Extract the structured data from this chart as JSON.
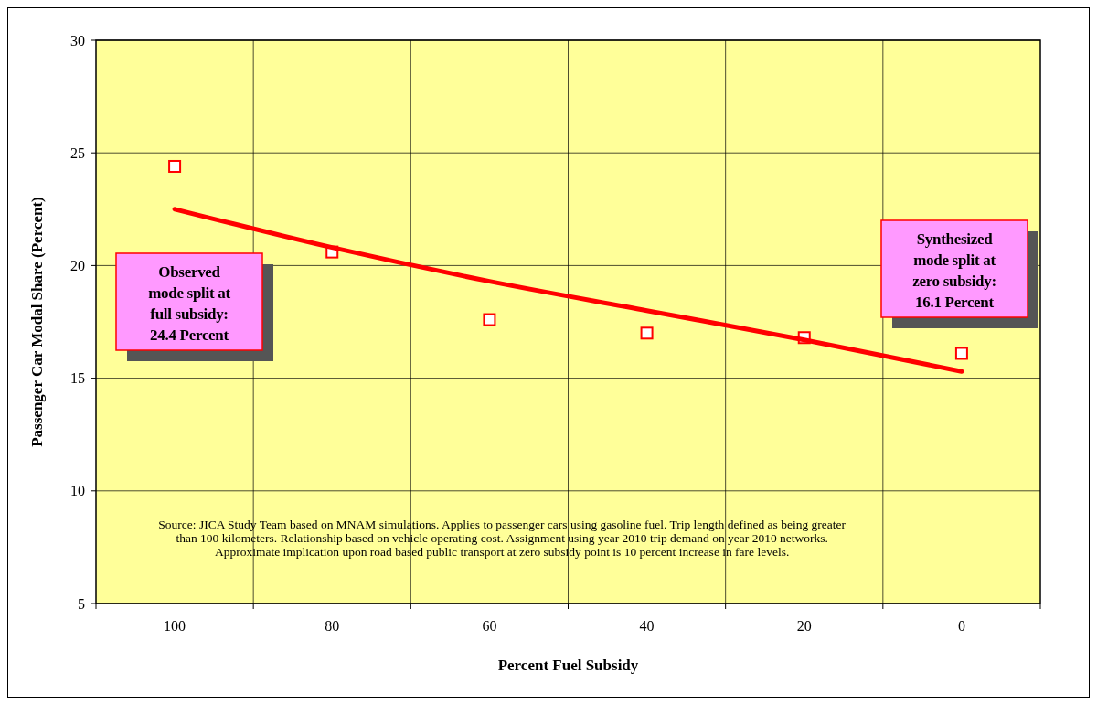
{
  "chart_data": {
    "type": "scatter",
    "xlabel": "Percent Fuel Subsidy",
    "ylabel": "Passenger Car Modal Share (Percent)",
    "categories": [
      "100",
      "80",
      "60",
      "40",
      "20",
      "0"
    ],
    "series": [
      {
        "color": "#ff0000",
        "marker": "square",
        "values": [
          24.4,
          20.6,
          17.6,
          17.0,
          16.8,
          16.1
        ]
      },
      {
        "type": "line",
        "color": "#ff0000",
        "x": [
          "100",
          "80",
          "60",
          "40",
          "20",
          "0"
        ],
        "values": [
          22.5,
          20.8,
          19.3,
          18.0,
          16.7,
          15.3
        ]
      }
    ],
    "ylim": [
      5,
      30
    ],
    "yticks": [
      5,
      10,
      15,
      20,
      25,
      30
    ],
    "grid": true,
    "annotations": [
      "Observed mode split at full subsidy: 24.4 Percent",
      "Synthesized mode split at zero subsidy: 16.1 Percent",
      "Source: JICA Study Team based on MNAM simulations. Applies to passenger cars using gasoline fuel. Trip length defined as being greater than 100 kilometers. Relationship based on vehicle operating cost. Assignment using year 2010 trip demand on year 2010 networks. Approximate implication upon road based public transport at zero subsidy point is 10 percent increase in fare levels."
    ]
  }
}
